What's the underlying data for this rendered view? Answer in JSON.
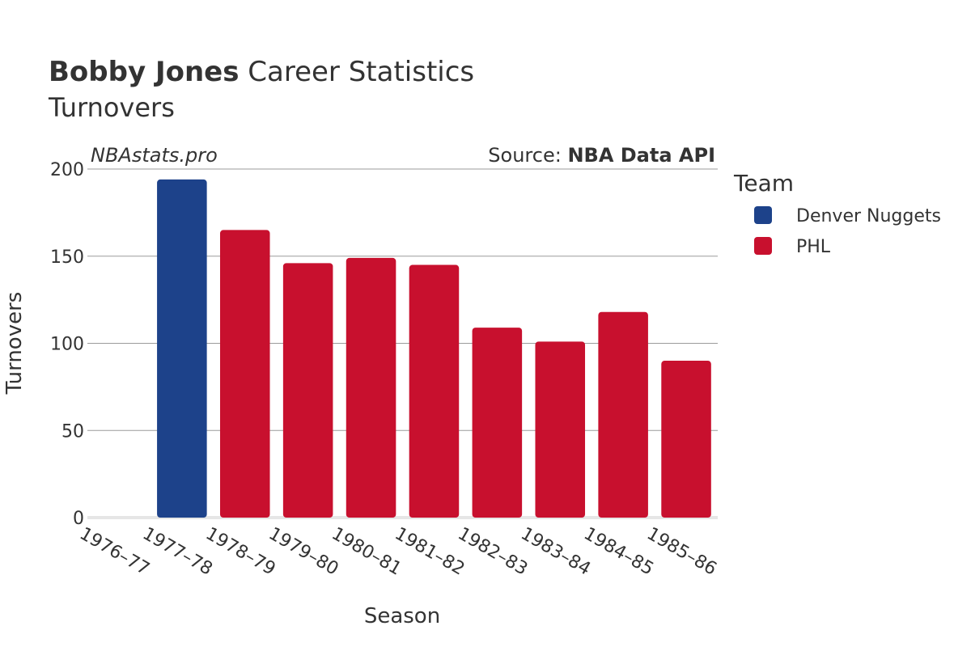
{
  "title": {
    "player": "Bobby Jones",
    "rest": " Career Statistics",
    "subtitle": "Turnovers"
  },
  "watermark": "NBAstats.pro",
  "source": {
    "prefix": "Source: ",
    "name": "NBA Data API"
  },
  "legend": {
    "title": "Team",
    "entries": [
      {
        "name": "Denver Nuggets",
        "color": "#1d428a"
      },
      {
        "name": "PHL",
        "color": "#c8102e"
      }
    ]
  },
  "chart_data": {
    "type": "bar",
    "title": "Bobby Jones Career Statistics",
    "subtitle": "Turnovers",
    "xlabel": "Season",
    "ylabel": "Turnovers",
    "ylim": [
      0,
      200
    ],
    "yticks": [
      0,
      50,
      100,
      150,
      200
    ],
    "grid": true,
    "legend_position": "right",
    "categories": [
      "1976–77",
      "1977–78",
      "1978–79",
      "1979–80",
      "1980–81",
      "1981–82",
      "1982–83",
      "1983–84",
      "1984–85",
      "1985–86"
    ],
    "series": [
      {
        "name": "Denver Nuggets",
        "color": "#1d428a",
        "values": [
          null,
          194,
          null,
          null,
          null,
          null,
          null,
          null,
          null,
          null
        ]
      },
      {
        "name": "PHL",
        "color": "#c8102e",
        "values": [
          null,
          null,
          165,
          146,
          149,
          145,
          109,
          101,
          118,
          90
        ]
      }
    ]
  }
}
